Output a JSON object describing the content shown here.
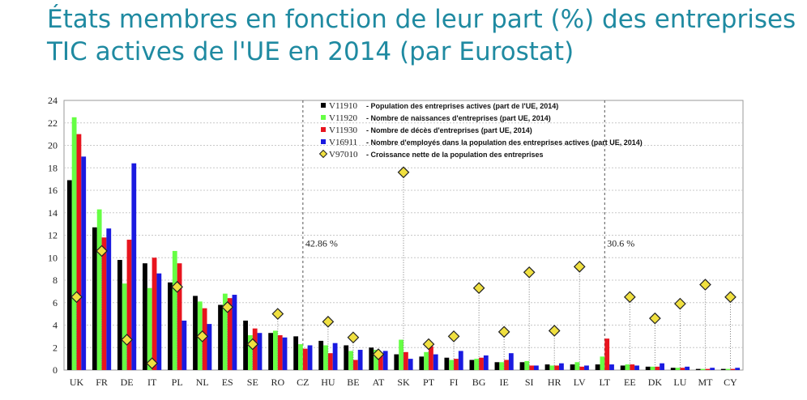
{
  "title": "États membres en fonction de leur part (%) des entreprises TIC actives de l'UE en 2014 (par Eurostat)",
  "chart_data": {
    "type": "bar",
    "categories": [
      "UK",
      "FR",
      "DE",
      "IT",
      "PL",
      "NL",
      "ES",
      "SE",
      "RO",
      "CZ",
      "HU",
      "BE",
      "AT",
      "SK",
      "PT",
      "FI",
      "BG",
      "IE",
      "SI",
      "HR",
      "LV",
      "LT",
      "EE",
      "DK",
      "LU",
      "MT",
      "CY"
    ],
    "ylim": [
      0,
      24
    ],
    "yticks": [
      0,
      2,
      4,
      6,
      8,
      10,
      12,
      14,
      16,
      18,
      20,
      22,
      24
    ],
    "grid": true,
    "legend_position": "top-center",
    "series": [
      {
        "code": "V11910",
        "name": "Population des entreprises actives (part de l'UE, 2014)",
        "color": "#000000",
        "marker": "bar",
        "values": [
          16.9,
          12.7,
          9.8,
          9.5,
          7.8,
          6.6,
          5.8,
          4.4,
          3.3,
          3.0,
          2.6,
          2.2,
          2.0,
          1.4,
          1.2,
          1.1,
          0.9,
          0.7,
          0.7,
          0.5,
          0.5,
          0.5,
          0.4,
          0.3,
          0.2,
          0.1,
          0.1
        ]
      },
      {
        "code": "V11920",
        "name": "Nombre de naissances d'entreprises (part UE, 2014)",
        "color": "#66ff44",
        "marker": "bar",
        "values": [
          22.5,
          14.3,
          7.7,
          7.3,
          10.6,
          6.1,
          6.8,
          3.1,
          3.5,
          2.3,
          2.2,
          1.7,
          1.8,
          2.7,
          1.6,
          0.9,
          1.0,
          0.7,
          0.8,
          0.4,
          0.7,
          1.2,
          0.5,
          0.3,
          0.2,
          0.1,
          0.1
        ]
      },
      {
        "code": "V11930",
        "name": "Nombre de décès d'entreprises (part UE, 2014)",
        "color": "#e8141e",
        "marker": "bar",
        "values": [
          21.0,
          11.8,
          11.6,
          10.0,
          9.5,
          5.5,
          6.4,
          3.7,
          3.1,
          1.9,
          1.5,
          0.9,
          1.4,
          1.6,
          2.1,
          1.0,
          1.1,
          0.9,
          0.4,
          0.4,
          0.3,
          2.8,
          0.5,
          0.3,
          0.2,
          0.1,
          0.1
        ]
      },
      {
        "code": "V16911",
        "name": "Nombre d'employés dans la population des entreprises actives (part UE, 2014)",
        "color": "#1a1ae0",
        "marker": "bar",
        "values": [
          19.0,
          12.6,
          18.4,
          8.6,
          4.4,
          4.1,
          6.7,
          3.3,
          2.9,
          2.2,
          2.4,
          1.8,
          1.7,
          1.0,
          1.4,
          1.7,
          1.3,
          1.5,
          0.4,
          0.6,
          0.4,
          0.5,
          0.4,
          0.6,
          0.3,
          0.2,
          0.2
        ]
      },
      {
        "code": "V97010",
        "name": "Croissance nette de la population des entreprises",
        "color": "#f0e040",
        "marker": "diamond",
        "values": [
          6.5,
          10.6,
          2.7,
          0.6,
          7.4,
          3.0,
          5.6,
          2.3,
          5.0,
          null,
          4.3,
          2.9,
          1.4,
          17.6,
          2.3,
          3.0,
          7.3,
          3.4,
          8.7,
          3.5,
          9.2,
          null,
          6.5,
          4.6,
          5.9,
          7.6,
          6.5
        ]
      }
    ],
    "annotations": [
      {
        "text": "42.86 %",
        "category": "CZ"
      },
      {
        "text": "30.6 %",
        "category": "LT"
      }
    ]
  }
}
